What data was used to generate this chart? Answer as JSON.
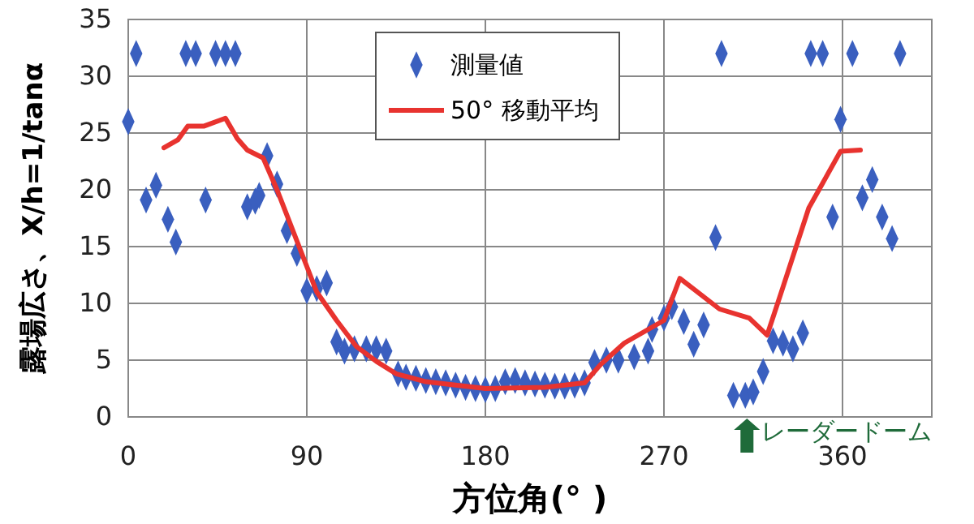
{
  "chart_data": {
    "type": "scatter",
    "xlabel": "方位角(° )",
    "ylabel": "露場広さ、X/h=1/tanα",
    "xlim": [
      0,
      405
    ],
    "xticks": [
      0,
      90,
      180,
      270,
      360
    ],
    "ylim": [
      0,
      35
    ],
    "yticks": [
      0,
      5,
      10,
      15,
      20,
      25,
      30,
      35
    ],
    "grid": true,
    "legend": "top",
    "series": [
      {
        "name": "測量値",
        "marker": "diamond",
        "color": "#3a5fbf",
        "x": [
          0,
          4,
          9,
          14,
          20,
          24,
          29,
          34,
          39,
          44,
          49,
          54,
          60,
          64,
          66,
          70,
          75,
          80,
          85,
          90,
          95,
          100,
          105,
          109,
          114,
          120,
          125,
          130,
          136,
          140,
          145,
          150,
          155,
          160,
          165,
          170,
          175,
          180,
          185,
          190,
          195,
          200,
          205,
          210,
          215,
          220,
          225,
          230,
          235,
          241,
          247,
          255,
          262,
          264,
          270,
          274,
          280,
          285,
          290,
          296,
          299,
          305,
          311,
          315,
          320,
          325,
          330,
          335,
          340,
          344,
          350,
          355,
          359,
          365,
          370,
          375,
          380,
          385,
          389
        ],
        "values": [
          26,
          32,
          19.1,
          20.4,
          17.4,
          15.4,
          32,
          32,
          19.1,
          32,
          32,
          32,
          18.5,
          19,
          19.5,
          23,
          20.5,
          16.4,
          14.4,
          11.1,
          11.3,
          11.8,
          6.6,
          5.8,
          6,
          6,
          6,
          5.8,
          3.8,
          3.5,
          3.4,
          3.2,
          3.1,
          3,
          2.8,
          2.6,
          2.5,
          2.4,
          2.5,
          3.1,
          3.2,
          3,
          2.9,
          2.8,
          2.7,
          2.7,
          2.8,
          3,
          4.8,
          5,
          5,
          5.3,
          5.8,
          7.7,
          8.7,
          9.7,
          8.4,
          6.4,
          8.1,
          15.8,
          32,
          1.9,
          1.9,
          2.2,
          4,
          6.7,
          6.5,
          6,
          7.4,
          32,
          32,
          17.6,
          26.2,
          32,
          19.3,
          20.9,
          17.6,
          15.7,
          32
        ]
      },
      {
        "name": "50° 移動平均",
        "type": "line",
        "line_style": "solid",
        "color": "#e8332f",
        "x": [
          18,
          25,
          30,
          38,
          49,
          55,
          60,
          68,
          75,
          85,
          95,
          105,
          115,
          125,
          135,
          150,
          180,
          210,
          230,
          238,
          250,
          260,
          270,
          278,
          298,
          313,
          322,
          329,
          343,
          359,
          369
        ],
        "values": [
          23.7,
          24.4,
          25.6,
          25.6,
          26.3,
          24.5,
          23.5,
          22.8,
          20,
          15.5,
          11,
          8.5,
          6.2,
          4.9,
          3.8,
          3.1,
          2.5,
          2.6,
          3,
          4.6,
          6.5,
          7.5,
          8.5,
          12.2,
          9.5,
          8.7,
          7.2,
          10.9,
          18.4,
          23.4,
          23.5
        ]
      }
    ],
    "annotations": [
      "レーダードーム"
    ]
  }
}
